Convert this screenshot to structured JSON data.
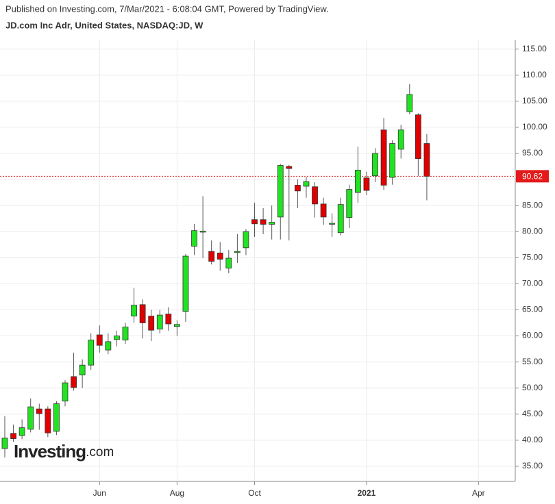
{
  "chart_data": {
    "type": "candlestick",
    "subtitle": "Published on Investing.com, 7/Mar/2021 - 6:08:04 GMT, Powered by TradingView.",
    "title": "JD.com Inc Adr, United States, NASDAQ:JD, W",
    "logo": {
      "name": "Investing",
      "suffix": ".com"
    },
    "categories": [
      null,
      null,
      null,
      null,
      null,
      null,
      null,
      null,
      null,
      null,
      null,
      "Jun",
      null,
      null,
      null,
      null,
      null,
      null,
      null,
      null,
      "Aug",
      null,
      null,
      null,
      null,
      null,
      null,
      null,
      null,
      "Oct",
      null,
      null,
      null,
      null,
      null,
      null,
      null,
      null,
      null,
      null,
      null,
      null,
      "2021",
      null,
      null,
      null,
      null,
      null,
      null,
      null,
      null,
      null,
      null,
      null,
      null,
      "Apr"
    ],
    "open": [
      38.4,
      41.3,
      40.9,
      42.1,
      46.0,
      46.0,
      41.7,
      47.5,
      52.2,
      52.5,
      54.4,
      60.2,
      57.3,
      59.3,
      59.2,
      63.8,
      66.0,
      63.8,
      61.3,
      64.2,
      61.8,
      64.7,
      77.2,
      80.0,
      76.2,
      75.9,
      73.0,
      76.0,
      76.9,
      82.3,
      82.3,
      81.4,
      82.8,
      92.5,
      88.9,
      88.7,
      88.6,
      85.3,
      81.5,
      79.8,
      82.7,
      87.5,
      90.3,
      90.7,
      99.5,
      90.4,
      95.8,
      103.0,
      102.4,
      96.9,
      null,
      null,
      null,
      null,
      null,
      null
    ],
    "high": [
      44.6,
      43.0,
      44.0,
      48.0,
      47.0,
      46.5,
      47.5,
      51.5,
      56.8,
      55.5,
      60.5,
      62.0,
      60.5,
      61.0,
      62.5,
      69.2,
      67.0,
      65.0,
      65.0,
      65.5,
      63.0,
      75.7,
      81.5,
      86.8,
      78.3,
      78.0,
      76.5,
      79.5,
      80.5,
      85.5,
      84.5,
      85.0,
      93.0,
      92.8,
      90.0,
      90.5,
      89.5,
      86.5,
      83.5,
      86.5,
      89.0,
      96.3,
      91.5,
      96.0,
      101.8,
      97.5,
      100.5,
      108.3,
      102.7,
      98.7,
      null,
      null,
      null,
      null,
      null,
      null
    ],
    "low": [
      36.7,
      39.7,
      40.2,
      41.5,
      42.0,
      40.6,
      41.0,
      46.5,
      49.5,
      50.0,
      53.5,
      56.8,
      56.5,
      58.0,
      58.5,
      62.5,
      59.5,
      59.0,
      60.5,
      61.0,
      60.0,
      62.7,
      75.5,
      74.9,
      73.7,
      72.5,
      72.0,
      74.0,
      75.5,
      79.0,
      79.5,
      78.5,
      78.5,
      78.3,
      84.5,
      86.5,
      82.7,
      81.3,
      79.0,
      79.3,
      80.7,
      85.5,
      87.0,
      89.5,
      88.0,
      89.0,
      94.0,
      102.5,
      90.7,
      86.0,
      null,
      null,
      null,
      null,
      null,
      null
    ],
    "close": [
      40.4,
      40.3,
      42.4,
      46.4,
      45.1,
      41.4,
      47.0,
      51.0,
      50.1,
      54.4,
      59.2,
      58.2,
      58.9,
      60.0,
      61.7,
      65.9,
      62.5,
      61.1,
      64.0,
      62.3,
      62.2,
      75.3,
      80.2,
      80.1,
      74.3,
      74.7,
      74.9,
      76.2,
      80.0,
      81.5,
      81.4,
      81.8,
      92.7,
      92.1,
      87.8,
      89.6,
      85.3,
      82.8,
      81.6,
      85.2,
      88.1,
      91.8,
      87.9,
      95.0,
      88.9,
      96.9,
      99.5,
      106.3,
      94.0,
      90.62,
      null,
      null,
      null,
      null,
      null,
      null
    ],
    "up_color": "#22e322",
    "down_color": "#e00000",
    "last_price": 90.62,
    "last_price_color": "#e31a1a",
    "ylim": [
      32.1,
      116.8
    ],
    "yticks": [
      {
        "value": 35,
        "label": "35.00"
      },
      {
        "value": 40,
        "label": "40.00"
      },
      {
        "value": 45,
        "label": "45.00"
      },
      {
        "value": 50,
        "label": "50.00"
      },
      {
        "value": 55,
        "label": "55.00"
      },
      {
        "value": 60,
        "label": "60.00"
      },
      {
        "value": 65,
        "label": "65.00"
      },
      {
        "value": 70,
        "label": "70.00"
      },
      {
        "value": 75,
        "label": "75.00"
      },
      {
        "value": 80,
        "label": "80.00"
      },
      {
        "value": 85,
        "label": "85.00"
      },
      {
        "value": 90,
        "label": "90.00"
      },
      {
        "value": 95,
        "label": "95.00"
      },
      {
        "value": 100,
        "label": "100.00"
      },
      {
        "value": 105,
        "label": "105.00"
      },
      {
        "value": 110,
        "label": "110.00"
      },
      {
        "value": 115,
        "label": "115.00"
      }
    ],
    "grid": true
  }
}
